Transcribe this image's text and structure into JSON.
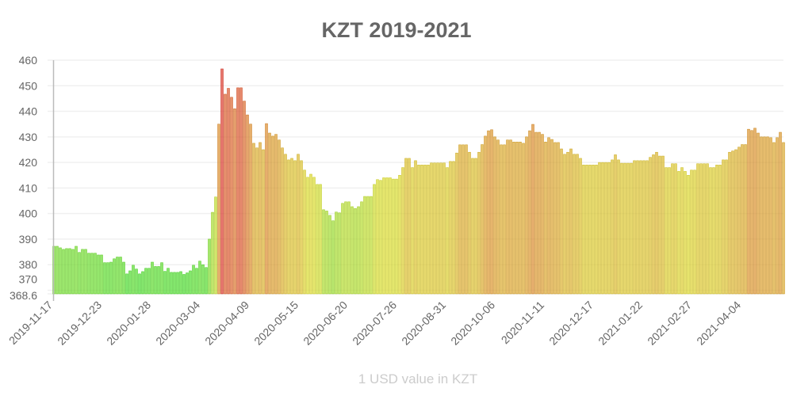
{
  "chart_data": {
    "type": "bar",
    "title": "KZT 2019-2021",
    "xlabel": "1 USD value in KZT",
    "ylabel": "",
    "ylim": [
      368.6,
      460
    ],
    "y_ticks": [
      "368.6",
      "370",
      "380",
      "390",
      "400",
      "410",
      "420",
      "430",
      "440",
      "450",
      "460"
    ],
    "x_ticks": [
      "2019-11-17",
      "2019-12-23",
      "2020-01-28",
      "2020-03-04",
      "2020-04-09",
      "2020-05-15",
      "2020-06-20",
      "2020-07-26",
      "2020-08-31",
      "2020-10-06",
      "2020-11-11",
      "2020-12-17",
      "2021-01-22",
      "2021-02-27",
      "2021-04-04"
    ],
    "x_range": [
      "2019-11-17",
      "2021-05-05"
    ],
    "grid": true,
    "color_scale": "green (low) to red (high)",
    "values": [
      387.2,
      387.2,
      386.6,
      386,
      386.3,
      386.3,
      386,
      387.2,
      384.8,
      386,
      386,
      384.5,
      384.5,
      384.5,
      383.8,
      383.8,
      380.8,
      380.8,
      381,
      382.3,
      383,
      383,
      381,
      376.4,
      377.6,
      379.8,
      378.3,
      376.4,
      377.3,
      378.6,
      378.6,
      381,
      379.3,
      379.3,
      380.8,
      377.4,
      378.6,
      377,
      377,
      377,
      377.3,
      376.2,
      376.8,
      377.6,
      379.8,
      378.6,
      381.4,
      380,
      378.9,
      390,
      400.5,
      406.5,
      435,
      456.6,
      446.7,
      449,
      445.5,
      441,
      449.2,
      449.2,
      444,
      438.6,
      435,
      427.5,
      425.7,
      427.8,
      425,
      435.2,
      431.5,
      430.3,
      431,
      428.8,
      425.7,
      423.2,
      421,
      421.6,
      420.7,
      423.2,
      420.7,
      417,
      414.2,
      415.4,
      414.2,
      411.4,
      411.4,
      401.5,
      401,
      399.3,
      397.2,
      400.6,
      400.3,
      404,
      404.6,
      404.6,
      402.7,
      402,
      402.7,
      404.6,
      406.7,
      406.7,
      406.7,
      411.4,
      413.3,
      413,
      414,
      414,
      414,
      413.5,
      413.5,
      415,
      418,
      421.6,
      421.6,
      418,
      420.7,
      419,
      419,
      419,
      419,
      419.8,
      419.8,
      419.8,
      419.8,
      419.8,
      418,
      420.4,
      420.4,
      423.7,
      426.9,
      426.9,
      426.9,
      424,
      421.6,
      421.6,
      424,
      427,
      430.3,
      432.4,
      432.8,
      430,
      428.8,
      426.9,
      426.9,
      428.8,
      428.8,
      428,
      428,
      428,
      427.5,
      430,
      432.4,
      434.9,
      431.8,
      431.8,
      431,
      428,
      429.7,
      429,
      427.8,
      427.8,
      425.3,
      423.2,
      424,
      425.3,
      423.2,
      423.2,
      421.6,
      419,
      419,
      419,
      419,
      419,
      420,
      420,
      420,
      420,
      421,
      423,
      421,
      419.7,
      419.7,
      419.7,
      419.7,
      420.7,
      420.7,
      420.7,
      420.7,
      420.7,
      422,
      423,
      424,
      422.5,
      422.5,
      418,
      418,
      419.5,
      419.5,
      416.5,
      418,
      416.5,
      415,
      417,
      417,
      419.5,
      419.5,
      419.5,
      419.5,
      418,
      418,
      419,
      419,
      421,
      421,
      424,
      424.5,
      425,
      426,
      427,
      427,
      433,
      432.5,
      433.4,
      431.5,
      430,
      430,
      430,
      429.7,
      427.8,
      429.7,
      431.8,
      427.8
    ]
  }
}
